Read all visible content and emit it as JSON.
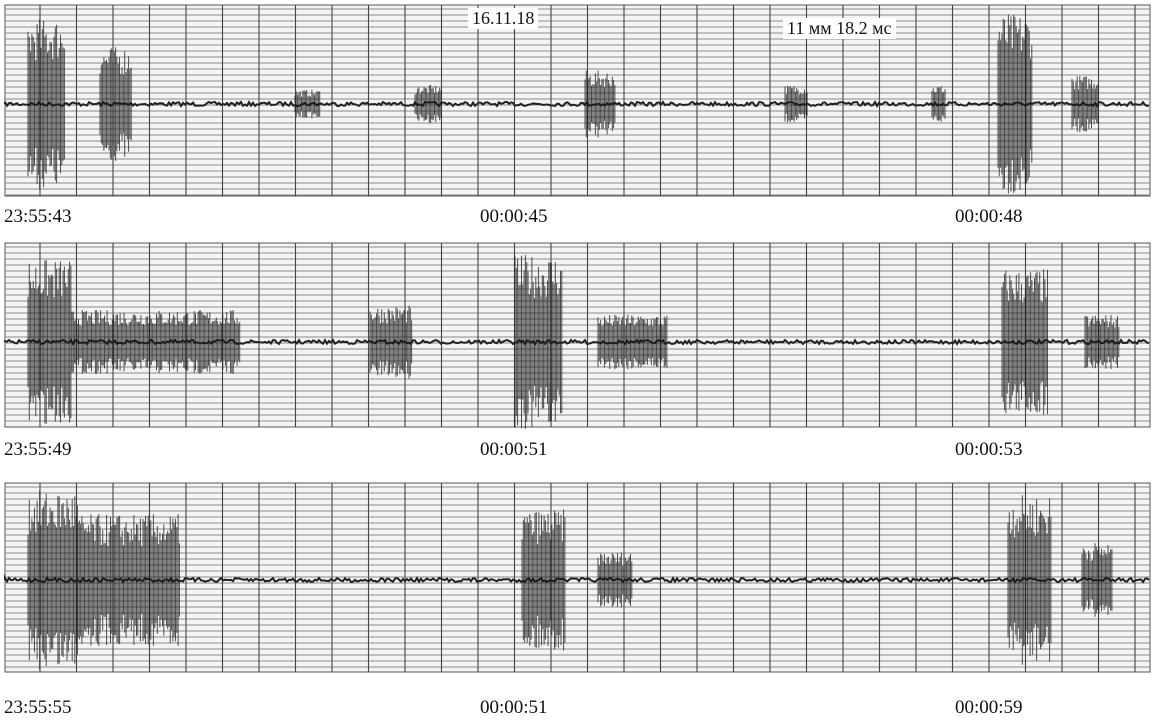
{
  "header": {
    "date": "16.11.18",
    "scale": "11 мм 18.2 мс"
  },
  "strips": [
    {
      "labels": [
        "23:55:43",
        "00:00:45",
        "00:00:48"
      ]
    },
    {
      "labels": [
        "23:55:49",
        "00:00:51",
        "00:00:53"
      ]
    },
    {
      "labels": [
        "23:55:55",
        "00:00:51",
        "00:00:59"
      ]
    }
  ]
}
